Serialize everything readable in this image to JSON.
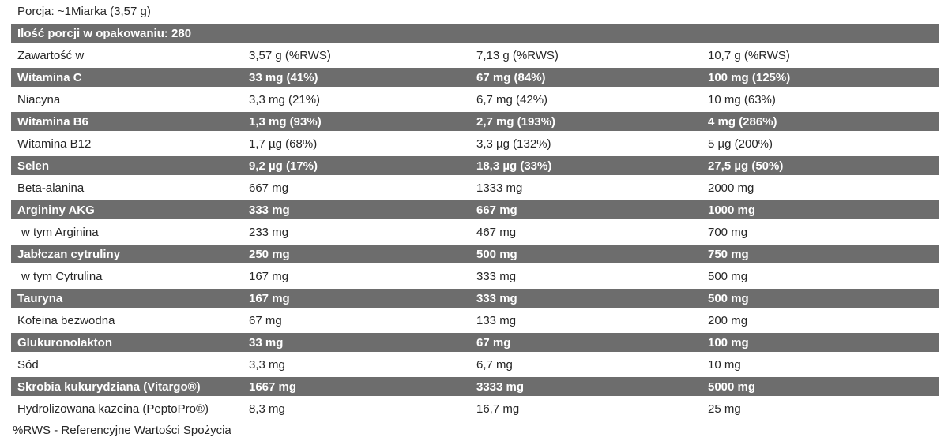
{
  "page": {
    "serving_header": "Porcja: ~1Miarka (3,57 g)",
    "servings_count_row": "Ilość porcji w opakowaniu: 280",
    "footnote": "%RWS - Referencyjne Wartości Spożycia"
  },
  "colors": {
    "band_bg": "#6d6d6d",
    "band_text": "#ffffff",
    "text": "#262626",
    "page_bg": "#ffffff"
  },
  "table": {
    "rows": [
      {
        "label": "Zawartość w",
        "v1": "3,57 g (%RWS)",
        "v2": "7,13 g (%RWS)",
        "v3": "10,7 g (%RWS)",
        "dark": false,
        "indent": false
      },
      {
        "label": "Witamina C",
        "v1": "33 mg (41%)",
        "v2": "67 mg (84%)",
        "v3": "100 mg (125%)",
        "dark": true,
        "indent": false
      },
      {
        "label": "Niacyna",
        "v1": "3,3 mg (21%)",
        "v2": "6,7 mg (42%)",
        "v3": "10 mg (63%)",
        "dark": false,
        "indent": false
      },
      {
        "label": "Witamina B6",
        "v1": "1,3 mg (93%)",
        "v2": "2,7 mg (193%)",
        "v3": "4 mg (286%)",
        "dark": true,
        "indent": false
      },
      {
        "label": "Witamina B12",
        "v1": "1,7 µg (68%)",
        "v2": "3,3 µg (132%)",
        "v3": "5 µg (200%)",
        "dark": false,
        "indent": false
      },
      {
        "label": "Selen",
        "v1": "9,2 µg (17%)",
        "v2": "18,3 µg (33%)",
        "v3": "27,5 µg (50%)",
        "dark": true,
        "indent": false
      },
      {
        "label": "Beta-alanina",
        "v1": "667 mg",
        "v2": "1333 mg",
        "v3": "2000 mg",
        "dark": false,
        "indent": false
      },
      {
        "label": "Argininy AKG",
        "v1": "333 mg",
        "v2": "667 mg",
        "v3": "1000 mg",
        "dark": true,
        "indent": false
      },
      {
        "label": "w tym Arginina",
        "v1": "233 mg",
        "v2": "467 mg",
        "v3": "700 mg",
        "dark": false,
        "indent": true
      },
      {
        "label": "Jabłczan cytruliny",
        "v1": "250 mg",
        "v2": "500 mg",
        "v3": "750 mg",
        "dark": true,
        "indent": false
      },
      {
        "label": "w tym Cytrulina",
        "v1": "167 mg",
        "v2": "333 mg",
        "v3": "500 mg",
        "dark": false,
        "indent": true
      },
      {
        "label": "Tauryna",
        "v1": "167 mg",
        "v2": "333 mg",
        "v3": "500 mg",
        "dark": true,
        "indent": false
      },
      {
        "label": "Kofeina bezwodna",
        "v1": "67 mg",
        "v2": "133 mg",
        "v3": "200 mg",
        "dark": false,
        "indent": false
      },
      {
        "label": "Glukuronolakton",
        "v1": "33 mg",
        "v2": "67 mg",
        "v3": "100 mg",
        "dark": true,
        "indent": false
      },
      {
        "label": "Sód",
        "v1": "3,3 mg",
        "v2": "6,7 mg",
        "v3": "10 mg",
        "dark": false,
        "indent": false
      },
      {
        "label": "Skrobia kukurydziana (Vitargo®)",
        "v1": "1667 mg",
        "v2": "3333 mg",
        "v3": "5000 mg",
        "dark": true,
        "indent": false
      },
      {
        "label": "Hydrolizowana kazeina (PeptoPro®)",
        "v1": "8,3 mg",
        "v2": "16,7 mg",
        "v3": "25 mg",
        "dark": false,
        "indent": false
      }
    ]
  }
}
